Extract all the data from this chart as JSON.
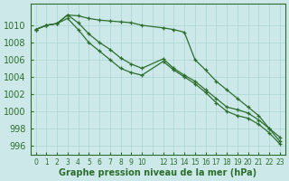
{
  "x_hours": [
    0,
    1,
    2,
    3,
    4,
    5,
    6,
    7,
    8,
    9,
    10,
    12,
    13,
    14,
    15,
    16,
    17,
    18,
    19,
    20,
    21,
    22,
    23
  ],
  "x_labels": [
    "0",
    "1",
    "2",
    "3",
    "4",
    "5",
    "6",
    "7",
    "8",
    "9",
    "10",
    "12",
    "13",
    "14",
    "15",
    "16",
    "17",
    "18",
    "19",
    "20",
    "21",
    "22",
    "23"
  ],
  "line_top": [
    1009.5,
    1010.0,
    1010.2,
    1011.2,
    1011.1,
    1010.8,
    1010.6,
    1010.5,
    1010.4,
    1010.3,
    1010.0,
    1009.7,
    1009.5,
    1009.2,
    1006.0,
    1004.8,
    1003.5,
    1002.5,
    1001.5,
    1000.5,
    999.5,
    998.0,
    997.0
  ],
  "line_mid": [
    1009.5,
    1010.0,
    1010.2,
    1011.2,
    1010.3,
    1009.0,
    1008.0,
    1007.2,
    1006.2,
    1005.5,
    1005.0,
    1006.1,
    1005.0,
    1004.2,
    1003.5,
    1002.5,
    1001.5,
    1000.5,
    1000.2,
    999.8,
    999.0,
    998.0,
    996.5
  ],
  "line_bot": [
    1009.5,
    1010.0,
    1010.2,
    1010.8,
    1009.5,
    1008.0,
    1007.0,
    1006.0,
    1005.0,
    1004.5,
    1004.2,
    1005.8,
    1004.8,
    1004.0,
    1003.2,
    1002.2,
    1001.0,
    1000.0,
    999.5,
    999.2,
    998.5,
    997.5,
    996.2
  ],
  "bg_color": "#cce8e8",
  "grid_color": "#aad4d4",
  "line_color": "#2d6e2d",
  "xlabel": "Graphe pression niveau de la mer (hPa)",
  "ylim": [
    995.0,
    1012.5
  ],
  "yticks": [
    996,
    998,
    1000,
    1002,
    1004,
    1006,
    1008,
    1010
  ],
  "label_fontsize": 7,
  "xtick_fontsize": 5.5
}
